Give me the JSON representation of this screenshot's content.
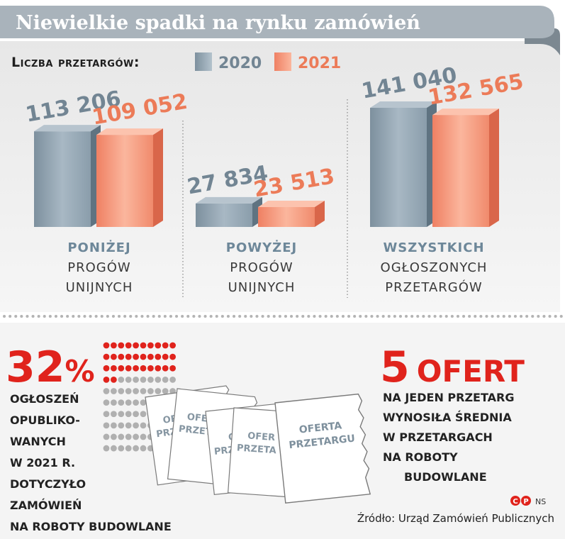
{
  "title": "Niewielkie spadki na rynku zamówień",
  "legend": {
    "label": "Liczba przetargów:",
    "items": [
      {
        "name": "2020",
        "color": "#94a8b6"
      },
      {
        "name": "2021",
        "color": "#f2957a"
      }
    ]
  },
  "colors": {
    "header_band": "#a9b3bb",
    "header_ribbon": "#7c8891",
    "panel_bg": "#efefef",
    "value_2020": "#728593",
    "value_2021": "#ec7b58",
    "category_strong": "#6d8799",
    "category_light": "#3a3a3a",
    "accent_red": "#e0231c",
    "dot_grey": "#b0b0b0",
    "text_dark": "#222222"
  },
  "chart_data": {
    "type": "bar",
    "title": "Niewielkie spadki na rynku zamówień",
    "ylabel": "Liczba przetargów",
    "legend_position": "top-left",
    "grid": false,
    "categories": [
      {
        "strong": "PONIŻEJ",
        "rest": [
          "PROGÓW",
          "UNIJNYCH"
        ]
      },
      {
        "strong": "POWYŻEJ",
        "rest": [
          "PROGÓW",
          "UNIJNYCH"
        ]
      },
      {
        "strong": "WSZYSTKICH",
        "rest": [
          "OGŁOSZONYCH",
          "PRZETARGÓW"
        ]
      }
    ],
    "series": [
      {
        "name": "2020",
        "values": [
          113206,
          27834,
          141040
        ],
        "labels": [
          "113 206",
          "27 834",
          "141 040"
        ]
      },
      {
        "name": "2021",
        "values": [
          109052,
          23513,
          132565
        ],
        "labels": [
          "109 052",
          "23 513",
          "132 565"
        ]
      }
    ],
    "ylim": [
      0,
      141040
    ]
  },
  "stat_left": {
    "value": "32",
    "unit": "%",
    "percent": 32,
    "lines": [
      "OGŁOSZEŃ",
      "OPUBLIKO-",
      "WANYCH",
      "W 2021 R.",
      "DOTYCZYŁO",
      "ZAMÓWIEŃ",
      "NA ROBOTY BUDOWLANE"
    ]
  },
  "documents": {
    "label_lines": [
      "OFERTA",
      "PRZETARGU"
    ],
    "partial_labels": [
      "OF",
      "PRZETA",
      "OFE",
      "PRZET",
      "OF",
      "PRZ",
      "OFER",
      "PRZETA"
    ]
  },
  "stat_right": {
    "value": "5",
    "unit": "OFERT",
    "lines": [
      "NA JEDEN PRZETARG",
      "WYNOSIŁA ŚREDNIA",
      "W PRZETARGACH",
      "NA ROBOTY",
      "BUDOWLANE"
    ]
  },
  "credit": {
    "marks": [
      "C",
      "P"
    ],
    "author": "NS"
  },
  "source": "Źródło: Urząd Zamówień Publicznych"
}
